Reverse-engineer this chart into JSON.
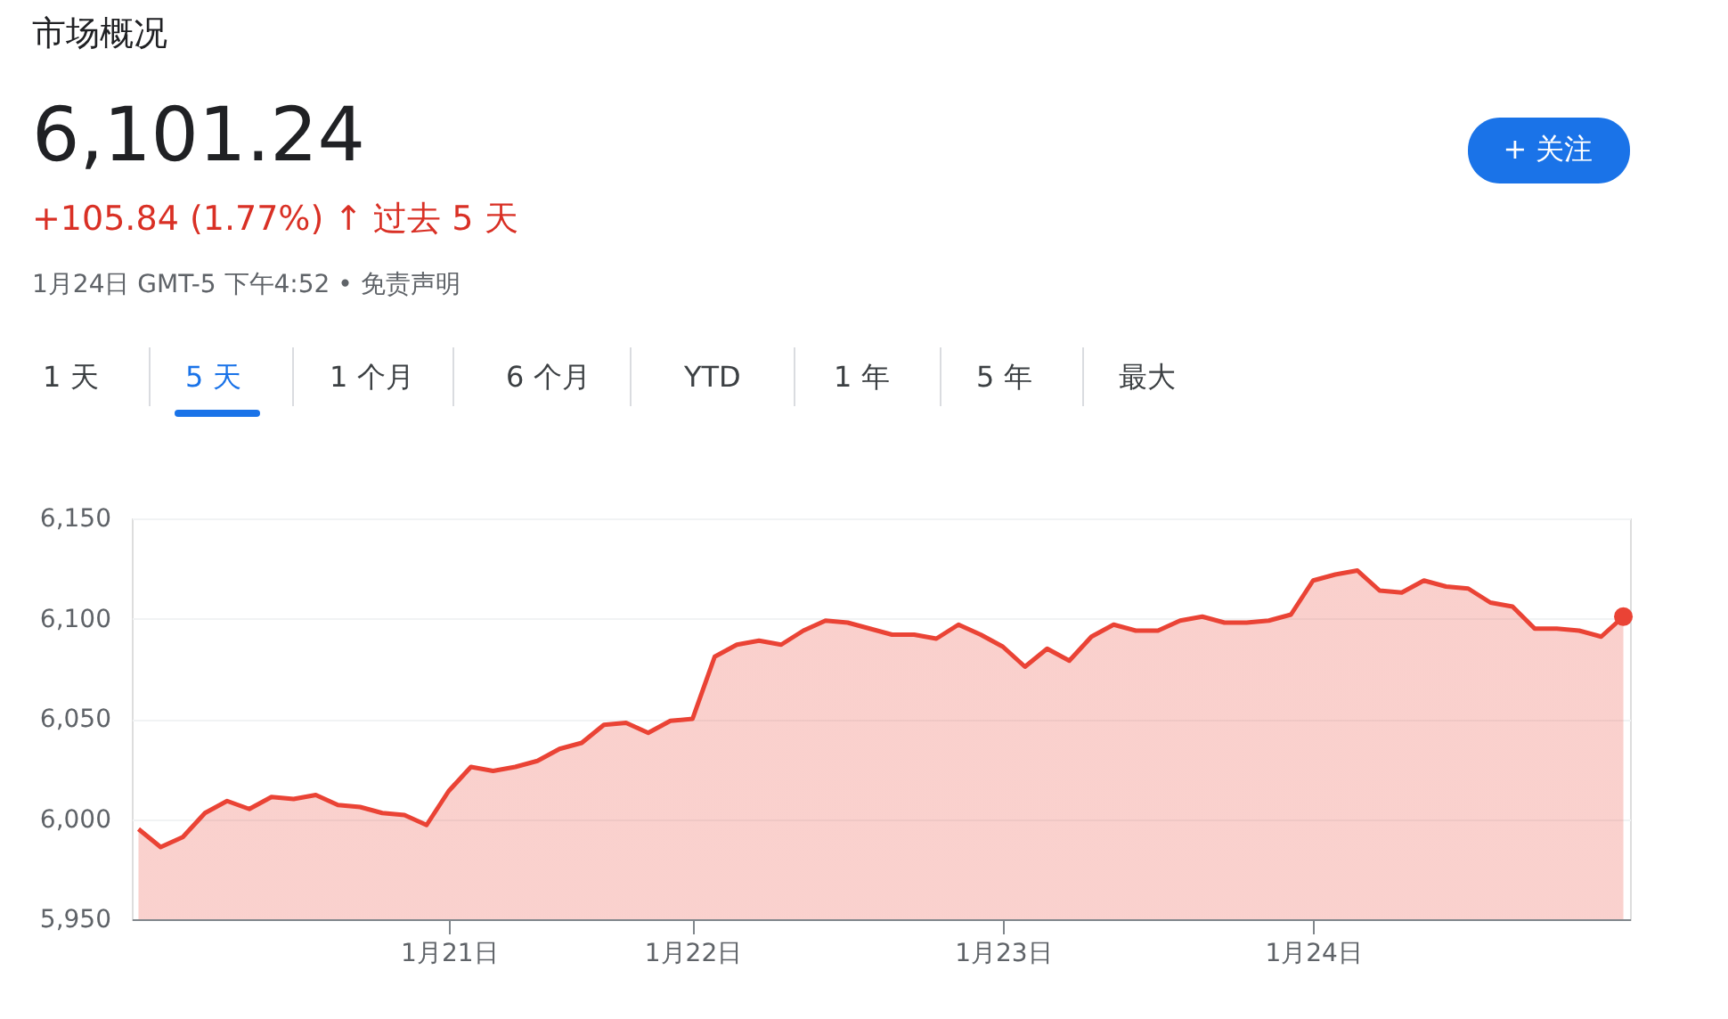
{
  "chart_data": {
    "type": "area",
    "title": "市场概况",
    "annotations": [
      "6,101.24",
      "+105.84 (1.77%) ↑ 过去 5 天",
      "1月24日 GMT-5 下午4:52 • 免责声明",
      "1 天",
      "5 天",
      "1 个月",
      "6 个月",
      "YTD",
      "1 年",
      "5 年",
      "最大",
      "+ 关注"
    ],
    "categories": [
      null,
      null,
      null,
      null,
      null,
      null,
      null,
      null,
      null,
      null,
      null,
      null,
      null,
      null,
      "1月21日",
      null,
      null,
      null,
      null,
      null,
      null,
      null,
      null,
      null,
      null,
      "1月22日",
      null,
      null,
      null,
      null,
      null,
      null,
      null,
      null,
      null,
      null,
      null,
      null,
      null,
      "1月23日",
      null,
      null,
      null,
      null,
      null,
      null,
      null,
      null,
      null,
      null,
      null,
      null,
      null,
      "1月24日",
      null,
      null,
      null,
      null,
      null,
      null,
      null,
      null,
      null,
      null,
      null,
      null,
      null,
      null
    ],
    "series": [
      {
        "color": "#ea4335",
        "values": [
          5995,
          5986,
          5991,
          6003,
          6009,
          6005,
          6011,
          6010,
          6012,
          6007,
          6006,
          6003,
          6002,
          5997,
          6014,
          6026,
          6024,
          6026,
          6029,
          6035,
          6038,
          6047,
          6048,
          6043,
          6049,
          6050,
          6081,
          6087,
          6089,
          6087,
          6094,
          6099,
          6098,
          6095,
          6092,
          6092,
          6090,
          6097,
          6092,
          6086,
          6076,
          6085,
          6079,
          6091,
          6097,
          6094,
          6094,
          6099,
          6101,
          6098,
          6098,
          6099,
          6102,
          6119,
          6122,
          6124,
          6114,
          6113,
          6119,
          6116,
          6115,
          6108,
          6106,
          6095,
          6095,
          6094,
          6091,
          6101
        ]
      },
      {
        "type": "scatter",
        "color": "#ea4335",
        "marker": "circle",
        "values": [
          null,
          null,
          null,
          null,
          null,
          null,
          null,
          null,
          null,
          null,
          null,
          null,
          null,
          null,
          null,
          null,
          null,
          null,
          null,
          null,
          null,
          null,
          null,
          null,
          null,
          null,
          null,
          null,
          null,
          null,
          null,
          null,
          null,
          null,
          null,
          null,
          null,
          null,
          null,
          null,
          null,
          null,
          null,
          null,
          null,
          null,
          null,
          null,
          null,
          null,
          null,
          null,
          null,
          null,
          null,
          null,
          null,
          null,
          null,
          null,
          null,
          null,
          null,
          null,
          null,
          null,
          null,
          6101
        ]
      }
    ],
    "ylim": [
      5950,
      6150
    ],
    "yticks": [
      {
        "value": 5950,
        "label": "5,950"
      },
      {
        "value": 6000,
        "label": "6,000"
      },
      {
        "value": 6050,
        "label": "6,050"
      },
      {
        "value": 6100,
        "label": "6,100"
      },
      {
        "value": 6150,
        "label": "6,150"
      }
    ],
    "grid": "y"
  }
}
